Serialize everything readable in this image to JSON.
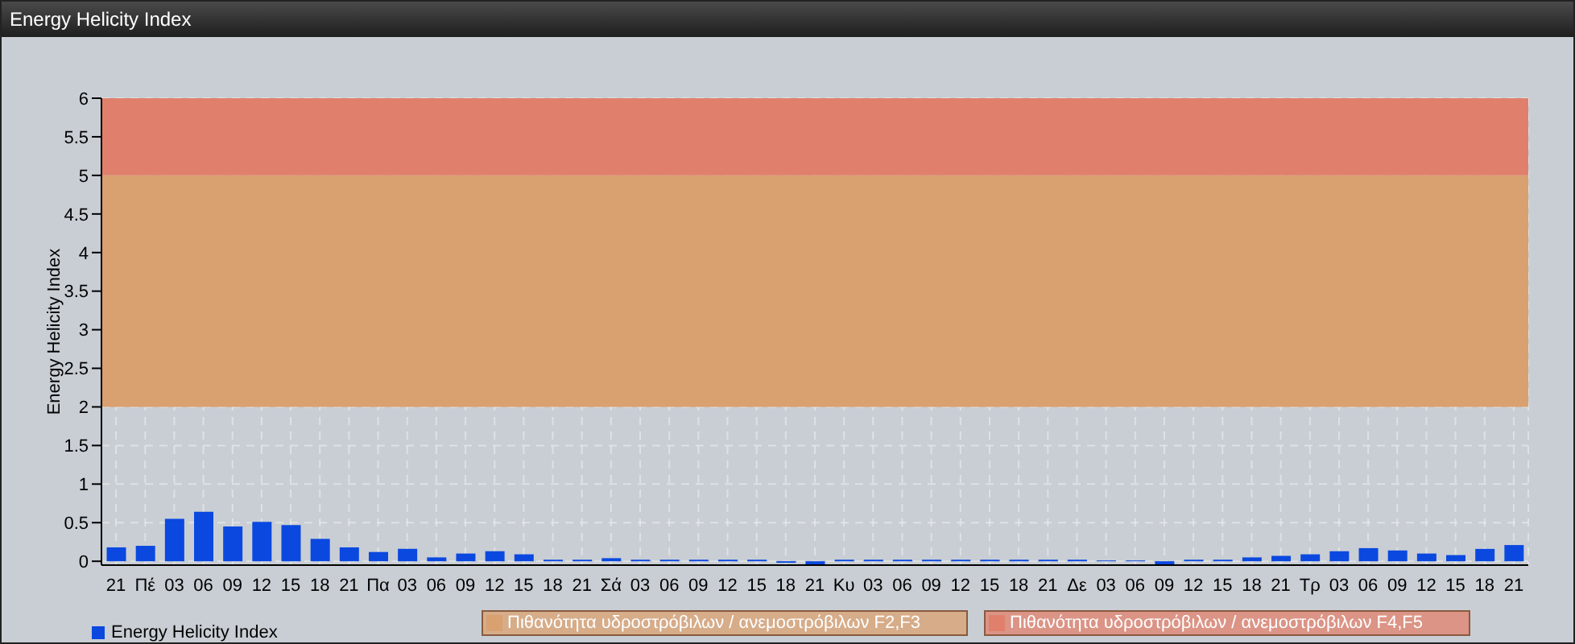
{
  "chart_data": {
    "type": "bar",
    "title": "Energy Helicity Index",
    "ylabel": "Energy Helicity Index",
    "categories": [
      "21",
      "Πέ",
      "03",
      "06",
      "09",
      "12",
      "15",
      "18",
      "21",
      "Πα",
      "03",
      "06",
      "09",
      "12",
      "15",
      "18",
      "21",
      "Σά",
      "03",
      "06",
      "09",
      "12",
      "15",
      "18",
      "21",
      "Κυ",
      "03",
      "06",
      "09",
      "12",
      "15",
      "18",
      "21",
      "Δε",
      "03",
      "06",
      "09",
      "12",
      "15",
      "18",
      "21",
      "Τρ",
      "03",
      "06",
      "09",
      "12",
      "15",
      "18",
      "21"
    ],
    "series": [
      {
        "name": "Energy Helicity Index",
        "color": "#0a48e0",
        "values": [
          0.18,
          0.2,
          0.55,
          0.64,
          0.45,
          0.51,
          0.47,
          0.29,
          0.18,
          0.12,
          0.16,
          0.05,
          0.1,
          0.13,
          0.09,
          0.02,
          0.02,
          0.04,
          0.02,
          0.02,
          0.02,
          0.02,
          0.02,
          -0.02,
          -0.04,
          0.02,
          0.02,
          0.02,
          0.02,
          0.02,
          0.02,
          0.02,
          0.02,
          0.02,
          0.01,
          0.01,
          -0.04,
          0.02,
          0.02,
          0.05,
          0.07,
          0.09,
          0.13,
          0.17,
          0.14,
          0.1,
          0.08,
          0.16,
          0.21
        ]
      }
    ],
    "ylim": [
      -0.05,
      6
    ],
    "yticks": [
      0,
      0.5,
      1,
      1.5,
      2,
      2.5,
      3,
      3.5,
      4,
      4.5,
      5,
      5.5,
      6
    ],
    "bands": [
      {
        "axis": "y",
        "from": 2,
        "to": 5,
        "label": "Πιθανότητα υδροστρόβιλων / ανεμοστρόβιλων F2,F3",
        "color": "#d9a070"
      },
      {
        "axis": "y",
        "from": 5,
        "to": 6,
        "label": "Πιθανότητα υδροστρόβιλων / ανεμοστρόβιλων F4,F5",
        "color": "#e0806c"
      }
    ],
    "grid": true,
    "legend": "bottom left"
  }
}
